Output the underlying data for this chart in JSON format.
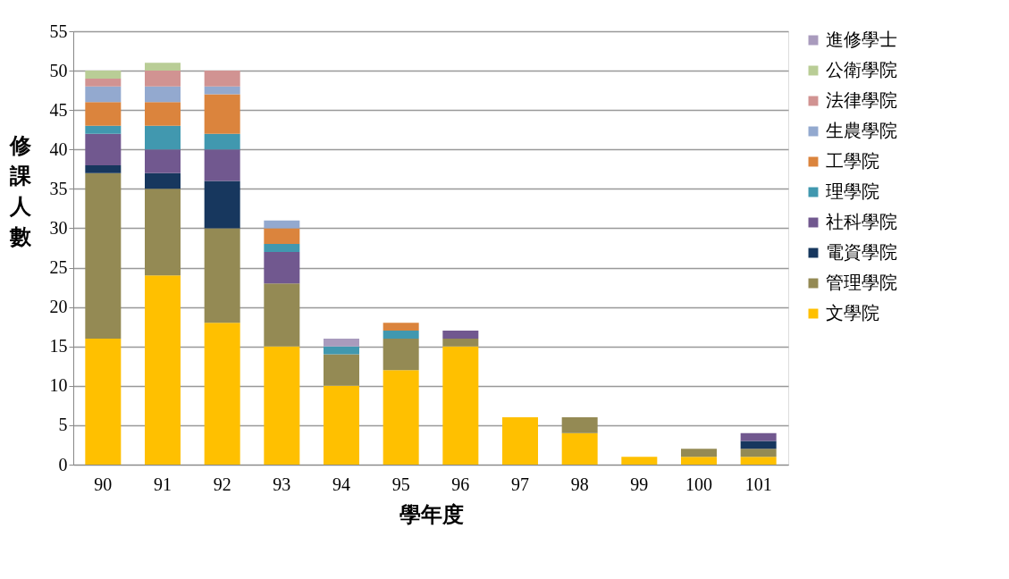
{
  "chart_data": {
    "type": "bar",
    "stacked": true,
    "xlabel": "學年度",
    "ylabel": "修課人數",
    "categories": [
      "90",
      "91",
      "92",
      "93",
      "94",
      "95",
      "96",
      "97",
      "98",
      "99",
      "100",
      "101"
    ],
    "ylim": [
      0,
      55
    ],
    "yticks": [
      0,
      5,
      10,
      15,
      20,
      25,
      30,
      35,
      40,
      45,
      50,
      55
    ],
    "grid": "y",
    "legend": "right",
    "series": [
      {
        "name": "文學院",
        "color": "#ffc000",
        "values": [
          16,
          24,
          18,
          15,
          10,
          12,
          15,
          6,
          4,
          1,
          1,
          1
        ]
      },
      {
        "name": "管理學院",
        "color": "#948a54",
        "values": [
          21,
          11,
          12,
          8,
          4,
          4,
          1,
          null,
          2,
          null,
          1,
          1
        ]
      },
      {
        "name": "電資學院",
        "color": "#17375e",
        "values": [
          1,
          2,
          6,
          null,
          null,
          null,
          null,
          null,
          null,
          null,
          null,
          1
        ]
      },
      {
        "name": "社科學院",
        "color": "#71588f",
        "values": [
          4,
          3,
          4,
          4,
          null,
          null,
          1,
          null,
          null,
          null,
          null,
          1
        ]
      },
      {
        "name": "理學院",
        "color": "#4198af",
        "values": [
          1,
          3,
          2,
          1,
          1,
          1,
          null,
          null,
          null,
          null,
          null,
          null
        ]
      },
      {
        "name": "工學院",
        "color": "#db843d",
        "values": [
          3,
          3,
          5,
          2,
          null,
          1,
          null,
          null,
          null,
          null,
          null,
          null
        ]
      },
      {
        "name": "生農學院",
        "color": "#93a9cf",
        "values": [
          2,
          2,
          1,
          1,
          null,
          null,
          null,
          null,
          null,
          null,
          null,
          null
        ]
      },
      {
        "name": "法律學院",
        "color": "#d19392",
        "values": [
          1,
          2,
          2,
          null,
          null,
          null,
          null,
          null,
          null,
          null,
          null,
          null
        ]
      },
      {
        "name": "公衛學院",
        "color": "#b9cd96",
        "values": [
          1,
          1,
          null,
          null,
          null,
          null,
          null,
          null,
          null,
          null,
          null,
          null
        ]
      },
      {
        "name": "進修學士",
        "color": "#a99bbd",
        "values": [
          null,
          null,
          null,
          null,
          1,
          null,
          null,
          null,
          null,
          null,
          null,
          null
        ]
      }
    ]
  }
}
